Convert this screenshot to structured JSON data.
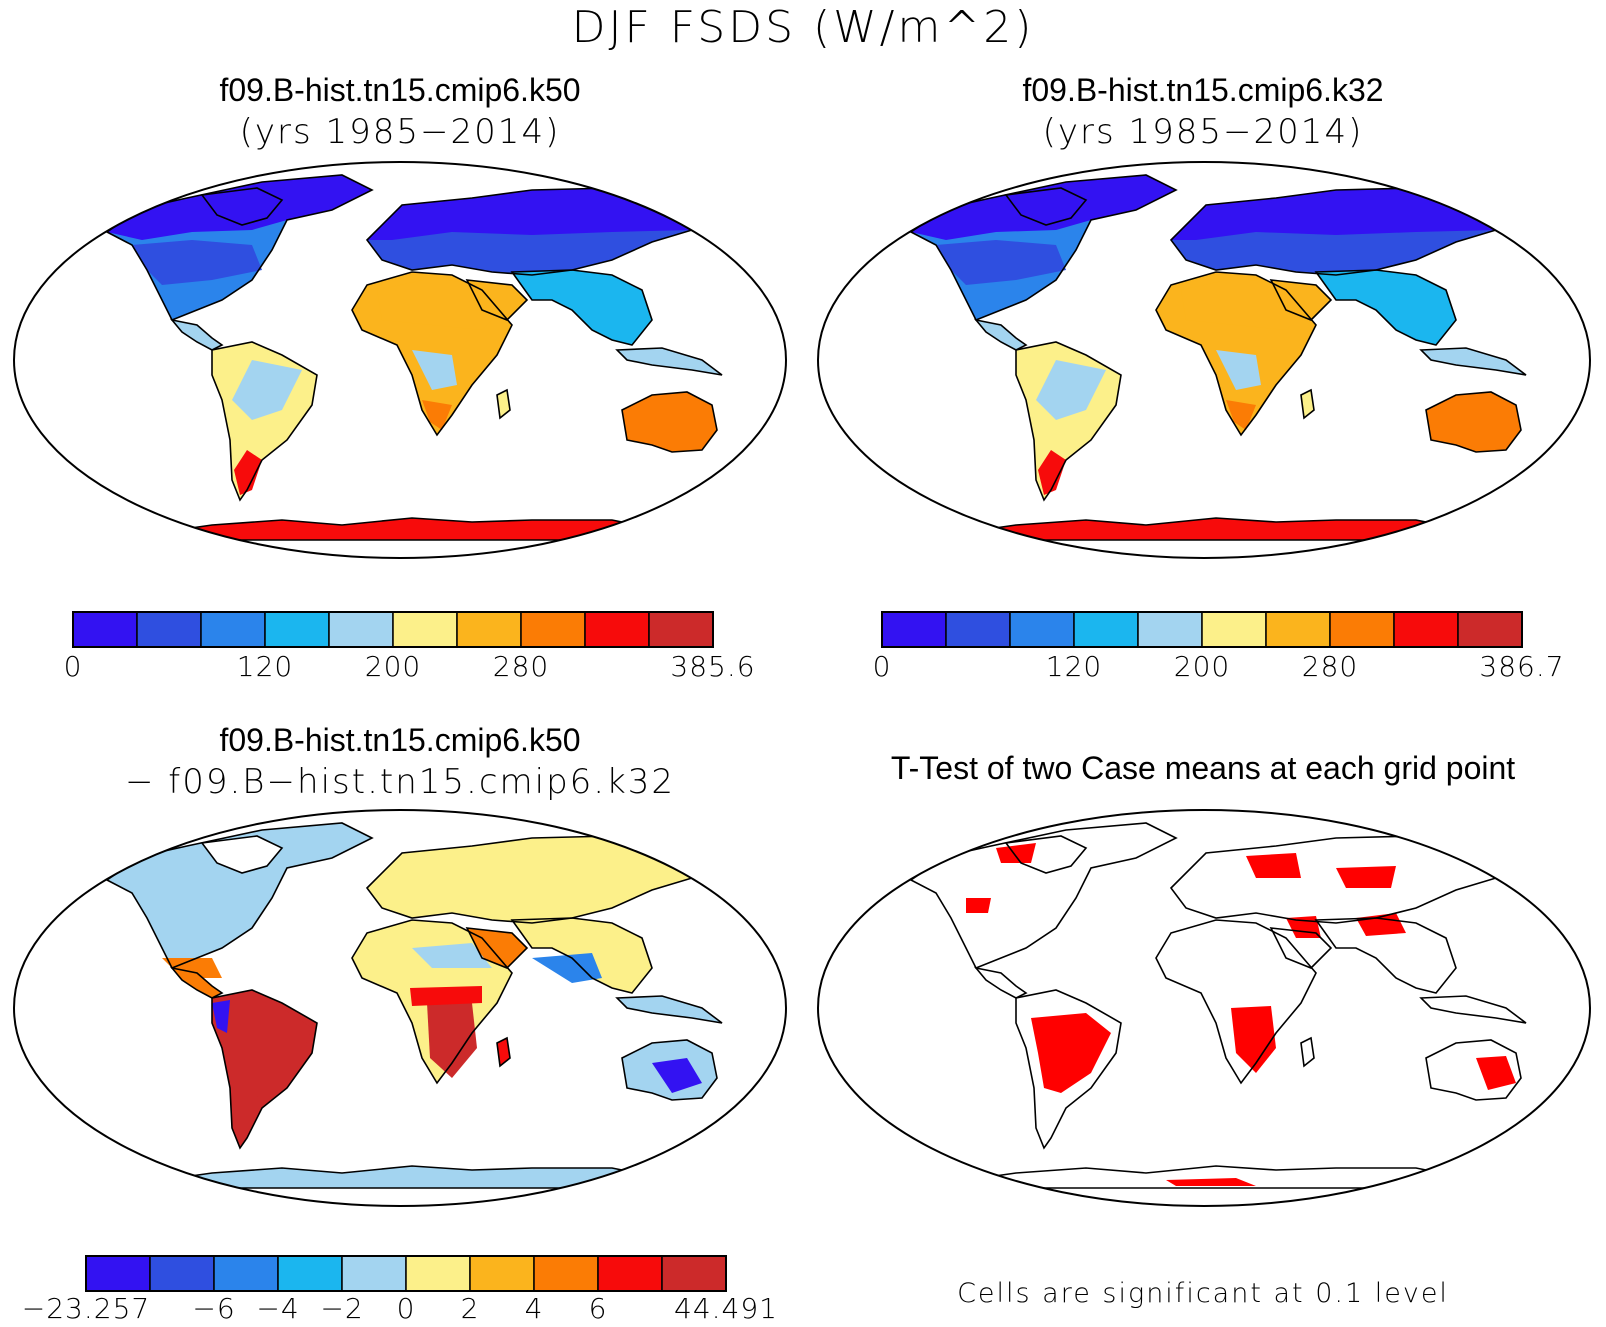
{
  "title": "DJF FSDS (W/m^2)",
  "panels": [
    {
      "id": "k50",
      "title": "f09.B-hist.tn15.cmip6.k50",
      "subtitle": "(yrs 1985−2014)",
      "field": "abs"
    },
    {
      "id": "k32",
      "title": "f09.B-hist.tn15.cmip6.k32",
      "subtitle": "(yrs 1985−2014)",
      "field": "abs"
    },
    {
      "id": "diff",
      "title": "f09.B-hist.tn15.cmip6.k50",
      "subtitle": "− f09.B−hist.tn15.cmip6.k32",
      "field": "diff"
    },
    {
      "id": "ttest",
      "title": "T-Test of two Case means at each grid point",
      "subtitle": "",
      "field": "ttest"
    }
  ],
  "colorbars": [
    {
      "id": "cb-k50",
      "colors": [
        "#3312f2",
        "#2f4fe0",
        "#2b84eb",
        "#1bb6ef",
        "#a3d4f0",
        "#fcf08a",
        "#fbb41d",
        "#fb7c05",
        "#f70b0b",
        "#cc2a2a"
      ],
      "labels": [
        {
          "text": "0",
          "at": 0
        },
        {
          "text": "120",
          "at": 3
        },
        {
          "text": "200",
          "at": 5
        },
        {
          "text": "280",
          "at": 7
        },
        {
          "text": "385.6",
          "at": 10
        }
      ]
    },
    {
      "id": "cb-k32",
      "colors": [
        "#3312f2",
        "#2f4fe0",
        "#2b84eb",
        "#1bb6ef",
        "#a3d4f0",
        "#fcf08a",
        "#fbb41d",
        "#fb7c05",
        "#f70b0b",
        "#cc2a2a"
      ],
      "labels": [
        {
          "text": "0",
          "at": 0
        },
        {
          "text": "120",
          "at": 3
        },
        {
          "text": "200",
          "at": 5
        },
        {
          "text": "280",
          "at": 7
        },
        {
          "text": "386.7",
          "at": 10
        }
      ]
    },
    {
      "id": "cb-diff",
      "colors": [
        "#3312f2",
        "#2f4fe0",
        "#2b84eb",
        "#1bb6ef",
        "#a3d4f0",
        "#fcf08a",
        "#fbb41d",
        "#fb7c05",
        "#f70b0b",
        "#cc2a2a"
      ],
      "labels": [
        {
          "text": "−23.257",
          "at": 0
        },
        {
          "text": "−6",
          "at": 2
        },
        {
          "text": "−4",
          "at": 3
        },
        {
          "text": "−2",
          "at": 4
        },
        {
          "text": "0",
          "at": 5
        },
        {
          "text": "2",
          "at": 6
        },
        {
          "text": "4",
          "at": 7
        },
        {
          "text": "6",
          "at": 8
        },
        {
          "text": "44.491",
          "at": 10
        }
      ]
    }
  ],
  "ttest_note": "Cells are significant at 0.1 level",
  "significance_color": "#ff0000"
}
